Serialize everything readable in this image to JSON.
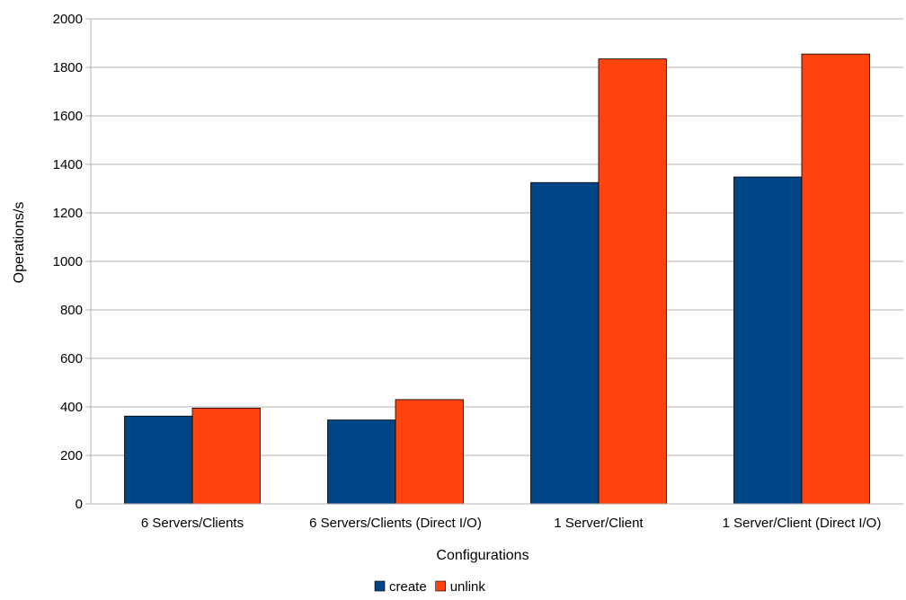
{
  "chart_data": {
    "type": "bar",
    "title": "",
    "xlabel": "Configurations",
    "ylabel": "Operations/s",
    "categories": [
      "6 Servers/Clients",
      "6 Servers/Clients (Direct I/O)",
      "1 Server/Client",
      "1 Server/Client (Direct I/O)"
    ],
    "series": [
      {
        "name": "create",
        "color": "#004586",
        "values": [
          362,
          346,
          1325,
          1348
        ]
      },
      {
        "name": "unlink",
        "color": "#ff420e",
        "values": [
          395,
          430,
          1835,
          1855
        ]
      }
    ],
    "ylim": [
      0,
      2000
    ],
    "yticks": [
      0,
      200,
      400,
      600,
      800,
      1000,
      1200,
      1400,
      1600,
      1800,
      2000
    ],
    "grid": true,
    "legend": "bottom-center"
  }
}
